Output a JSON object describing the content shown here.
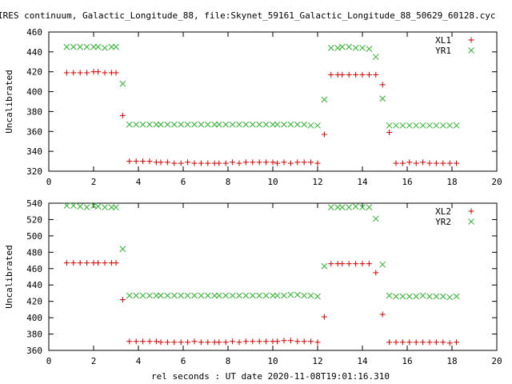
{
  "title": "IRES continuum, Galactic_Longitude_88, file:Skynet_59161_Galactic_Longitude_88_50629_60128.cyc",
  "xlabel": "rel seconds : UT date 2020-11-08T19:01:16.310",
  "colors": {
    "red": "#d40000",
    "green": "#2fb22f"
  },
  "chart_data": [
    {
      "type": "scatter",
      "ylabel": "Uncalibrated",
      "xlim": [
        0,
        20
      ],
      "ylim": [
        320,
        460
      ],
      "xticks": [
        0,
        2,
        4,
        6,
        8,
        10,
        12,
        14,
        16,
        18,
        20
      ],
      "yticks": [
        320,
        340,
        360,
        380,
        400,
        420,
        440,
        460
      ],
      "grid": false,
      "legend_position": "top-right",
      "series": [
        {
          "name": "XL1",
          "marker": "plus",
          "color": "#d40000",
          "points": [
            [
              0.8,
              419
            ],
            [
              1.1,
              419
            ],
            [
              1.4,
              419
            ],
            [
              1.7,
              419
            ],
            [
              2.0,
              420
            ],
            [
              2.2,
              420
            ],
            [
              2.5,
              419
            ],
            [
              2.8,
              419
            ],
            [
              3.0,
              419
            ],
            [
              3.3,
              376
            ],
            [
              3.6,
              330
            ],
            [
              3.9,
              330
            ],
            [
              4.2,
              330
            ],
            [
              4.5,
              330
            ],
            [
              4.8,
              329
            ],
            [
              5.0,
              329
            ],
            [
              5.3,
              329
            ],
            [
              5.6,
              328
            ],
            [
              5.9,
              328
            ],
            [
              6.2,
              329
            ],
            [
              6.5,
              328
            ],
            [
              6.8,
              328
            ],
            [
              7.1,
              328
            ],
            [
              7.4,
              328
            ],
            [
              7.6,
              328
            ],
            [
              7.9,
              328
            ],
            [
              8.2,
              329
            ],
            [
              8.5,
              328
            ],
            [
              8.8,
              329
            ],
            [
              9.1,
              329
            ],
            [
              9.4,
              329
            ],
            [
              9.7,
              329
            ],
            [
              10.0,
              329
            ],
            [
              10.2,
              328
            ],
            [
              10.5,
              329
            ],
            [
              10.8,
              328
            ],
            [
              11.1,
              329
            ],
            [
              11.4,
              329
            ],
            [
              11.7,
              329
            ],
            [
              12.0,
              328
            ],
            [
              12.3,
              357
            ],
            [
              12.6,
              417
            ],
            [
              12.9,
              417
            ],
            [
              13.1,
              417
            ],
            [
              13.4,
              417
            ],
            [
              13.7,
              417
            ],
            [
              14.0,
              417
            ],
            [
              14.3,
              417
            ],
            [
              14.6,
              417
            ],
            [
              14.9,
              407
            ],
            [
              15.2,
              359
            ],
            [
              15.5,
              328
            ],
            [
              15.8,
              328
            ],
            [
              16.1,
              329
            ],
            [
              16.4,
              328
            ],
            [
              16.7,
              329
            ],
            [
              17.0,
              328
            ],
            [
              17.3,
              328
            ],
            [
              17.6,
              328
            ],
            [
              17.9,
              328
            ],
            [
              18.2,
              328
            ]
          ]
        },
        {
          "name": "YR1",
          "marker": "cross",
          "color": "#2fb22f",
          "points": [
            [
              0.8,
              445
            ],
            [
              1.1,
              445
            ],
            [
              1.4,
              445
            ],
            [
              1.7,
              445
            ],
            [
              2.0,
              445
            ],
            [
              2.2,
              445
            ],
            [
              2.5,
              444
            ],
            [
              2.8,
              445
            ],
            [
              3.0,
              445
            ],
            [
              3.3,
              408
            ],
            [
              3.6,
              367
            ],
            [
              3.9,
              367
            ],
            [
              4.2,
              367
            ],
            [
              4.5,
              367
            ],
            [
              4.8,
              367
            ],
            [
              5.0,
              367
            ],
            [
              5.3,
              367
            ],
            [
              5.6,
              367
            ],
            [
              5.9,
              367
            ],
            [
              6.2,
              367
            ],
            [
              6.5,
              367
            ],
            [
              6.8,
              367
            ],
            [
              7.1,
              367
            ],
            [
              7.4,
              367
            ],
            [
              7.6,
              367
            ],
            [
              7.9,
              367
            ],
            [
              8.2,
              367
            ],
            [
              8.5,
              367
            ],
            [
              8.8,
              367
            ],
            [
              9.1,
              367
            ],
            [
              9.4,
              367
            ],
            [
              9.7,
              367
            ],
            [
              10.0,
              367
            ],
            [
              10.2,
              367
            ],
            [
              10.5,
              367
            ],
            [
              10.8,
              367
            ],
            [
              11.1,
              367
            ],
            [
              11.4,
              367
            ],
            [
              11.7,
              366
            ],
            [
              12.0,
              366
            ],
            [
              12.3,
              392
            ],
            [
              12.6,
              444
            ],
            [
              12.9,
              444
            ],
            [
              13.1,
              445
            ],
            [
              13.4,
              445
            ],
            [
              13.7,
              444
            ],
            [
              14.0,
              444
            ],
            [
              14.3,
              443
            ],
            [
              14.6,
              435
            ],
            [
              14.9,
              393
            ],
            [
              15.2,
              366
            ],
            [
              15.5,
              366
            ],
            [
              15.8,
              366
            ],
            [
              16.1,
              366
            ],
            [
              16.4,
              366
            ],
            [
              16.7,
              366
            ],
            [
              17.0,
              366
            ],
            [
              17.3,
              366
            ],
            [
              17.6,
              366
            ],
            [
              17.9,
              366
            ],
            [
              18.2,
              366
            ]
          ]
        }
      ]
    },
    {
      "type": "scatter",
      "ylabel": "Uncalibrated",
      "xlim": [
        0,
        20
      ],
      "ylim": [
        360,
        540
      ],
      "xticks": [
        0,
        2,
        4,
        6,
        8,
        10,
        12,
        14,
        16,
        18,
        20
      ],
      "yticks": [
        360,
        380,
        400,
        420,
        440,
        460,
        480,
        500,
        520,
        540
      ],
      "grid": false,
      "legend_position": "top-right",
      "series": [
        {
          "name": "XL2",
          "marker": "plus",
          "color": "#d40000",
          "points": [
            [
              0.8,
              467
            ],
            [
              1.1,
              467
            ],
            [
              1.4,
              467
            ],
            [
              1.7,
              467
            ],
            [
              2.0,
              467
            ],
            [
              2.2,
              467
            ],
            [
              2.5,
              467
            ],
            [
              2.8,
              467
            ],
            [
              3.0,
              467
            ],
            [
              3.3,
              422
            ],
            [
              3.6,
              371
            ],
            [
              3.9,
              371
            ],
            [
              4.2,
              371
            ],
            [
              4.5,
              371
            ],
            [
              4.8,
              371
            ],
            [
              5.0,
              370
            ],
            [
              5.3,
              370
            ],
            [
              5.6,
              370
            ],
            [
              5.9,
              370
            ],
            [
              6.2,
              370
            ],
            [
              6.5,
              371
            ],
            [
              6.8,
              370
            ],
            [
              7.1,
              370
            ],
            [
              7.4,
              370
            ],
            [
              7.6,
              370
            ],
            [
              7.9,
              370
            ],
            [
              8.2,
              371
            ],
            [
              8.5,
              370
            ],
            [
              8.8,
              371
            ],
            [
              9.1,
              371
            ],
            [
              9.4,
              371
            ],
            [
              9.7,
              371
            ],
            [
              10.0,
              371
            ],
            [
              10.2,
              371
            ],
            [
              10.5,
              372
            ],
            [
              10.8,
              372
            ],
            [
              11.1,
              371
            ],
            [
              11.4,
              371
            ],
            [
              11.7,
              371
            ],
            [
              12.0,
              370
            ],
            [
              12.3,
              401
            ],
            [
              12.6,
              466
            ],
            [
              12.9,
              466
            ],
            [
              13.1,
              466
            ],
            [
              13.4,
              466
            ],
            [
              13.7,
              466
            ],
            [
              14.0,
              466
            ],
            [
              14.3,
              466
            ],
            [
              14.6,
              455
            ],
            [
              14.9,
              404
            ],
            [
              15.2,
              370
            ],
            [
              15.5,
              370
            ],
            [
              15.8,
              370
            ],
            [
              16.1,
              370
            ],
            [
              16.4,
              370
            ],
            [
              16.7,
              370
            ],
            [
              17.0,
              370
            ],
            [
              17.3,
              370
            ],
            [
              17.6,
              370
            ],
            [
              17.9,
              369
            ],
            [
              18.2,
              370
            ]
          ]
        },
        {
          "name": "YR2",
          "marker": "cross",
          "color": "#2fb22f",
          "points": [
            [
              0.8,
              537
            ],
            [
              1.1,
              537
            ],
            [
              1.4,
              536
            ],
            [
              1.7,
              535
            ],
            [
              2.0,
              537
            ],
            [
              2.2,
              536
            ],
            [
              2.5,
              535
            ],
            [
              2.8,
              535
            ],
            [
              3.0,
              535
            ],
            [
              3.3,
              484
            ],
            [
              3.6,
              427
            ],
            [
              3.9,
              427
            ],
            [
              4.2,
              427
            ],
            [
              4.5,
              427
            ],
            [
              4.8,
              427
            ],
            [
              5.0,
              427
            ],
            [
              5.3,
              427
            ],
            [
              5.6,
              427
            ],
            [
              5.9,
              427
            ],
            [
              6.2,
              427
            ],
            [
              6.5,
              427
            ],
            [
              6.8,
              427
            ],
            [
              7.1,
              427
            ],
            [
              7.4,
              427
            ],
            [
              7.6,
              427
            ],
            [
              7.9,
              427
            ],
            [
              8.2,
              427
            ],
            [
              8.5,
              427
            ],
            [
              8.8,
              427
            ],
            [
              9.1,
              427
            ],
            [
              9.4,
              427
            ],
            [
              9.7,
              427
            ],
            [
              10.0,
              427
            ],
            [
              10.2,
              427
            ],
            [
              10.5,
              427
            ],
            [
              10.8,
              428
            ],
            [
              11.1,
              428
            ],
            [
              11.4,
              427
            ],
            [
              11.7,
              427
            ],
            [
              12.0,
              426
            ],
            [
              12.3,
              463
            ],
            [
              12.6,
              535
            ],
            [
              12.9,
              535
            ],
            [
              13.1,
              535
            ],
            [
              13.4,
              535
            ],
            [
              13.7,
              536
            ],
            [
              14.0,
              535
            ],
            [
              14.3,
              535
            ],
            [
              14.6,
              521
            ],
            [
              14.9,
              465
            ],
            [
              15.2,
              427
            ],
            [
              15.5,
              426
            ],
            [
              15.8,
              426
            ],
            [
              16.1,
              426
            ],
            [
              16.4,
              426
            ],
            [
              16.7,
              427
            ],
            [
              17.0,
              426
            ],
            [
              17.3,
              426
            ],
            [
              17.6,
              426
            ],
            [
              17.9,
              425
            ],
            [
              18.2,
              426
            ]
          ]
        }
      ]
    }
  ]
}
